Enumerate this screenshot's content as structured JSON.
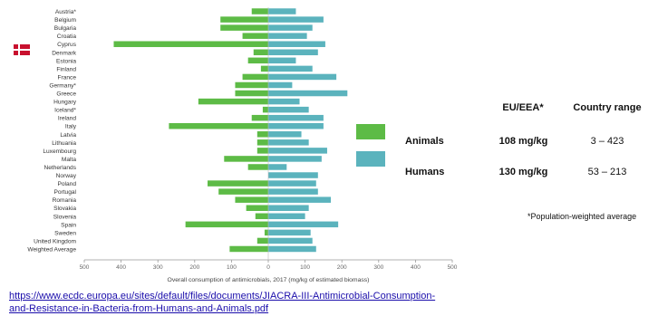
{
  "chart_data": {
    "type": "bar",
    "orientation": "horizontal-diverging",
    "categories": [
      "Austria*",
      "Belgium",
      "Bulgaria",
      "Croatia",
      "Cyprus",
      "Denmark",
      "Estonia",
      "Finland",
      "France",
      "Germany*",
      "Greece",
      "Hungary",
      "Iceland*",
      "Ireland",
      "Italy",
      "Latvia",
      "Lithuania",
      "Luxembourg",
      "Malta",
      "Netherlands",
      "Norway",
      "Poland",
      "Portugal",
      "Romania",
      "Slovakia",
      "Slovenia",
      "Spain",
      "Sweden",
      "United Kingdom",
      "Weighted Average"
    ],
    "series": [
      {
        "name": "Animals",
        "color": "#5dbb46",
        "direction": "left",
        "values": [
          45,
          130,
          130,
          70,
          420,
          40,
          55,
          20,
          70,
          90,
          90,
          190,
          15,
          45,
          270,
          30,
          30,
          30,
          120,
          55,
          0,
          165,
          135,
          90,
          60,
          35,
          225,
          10,
          30,
          105
        ]
      },
      {
        "name": "Humans",
        "color": "#5bb3bd",
        "direction": "right",
        "values": [
          75,
          150,
          120,
          105,
          155,
          135,
          75,
          120,
          185,
          65,
          215,
          85,
          110,
          150,
          150,
          90,
          110,
          160,
          145,
          50,
          135,
          130,
          135,
          170,
          110,
          100,
          190,
          115,
          120,
          130
        ]
      }
    ],
    "xlabel": "Overall consumption of antimicrobials, 2017 (mg/kg of estimated biomass)",
    "xticks": [
      "500",
      "400",
      "300",
      "200",
      "100",
      "0",
      "100",
      "200",
      "300",
      "400",
      "500"
    ],
    "xlim": [
      -500,
      500
    ],
    "grid": false,
    "legend_position": "right"
  },
  "legend": {
    "items": [
      {
        "label": "Animals",
        "color": "#5dbb46"
      },
      {
        "label": "Humans",
        "color": "#5bb3bd"
      }
    ]
  },
  "summary_table": {
    "headers": [
      "EU/EEA*",
      "Country range"
    ],
    "rows": [
      {
        "value": "108 mg/kg",
        "range": "3 – 423"
      },
      {
        "value": "130 mg/kg",
        "range": "53 – 213"
      }
    ],
    "note": "*Population-weighted average"
  },
  "source_link": {
    "line1": "https://www.ecdc.europa.eu/sites/default/files/documents/JIACRA-III-Antimicrobial-Consumption-",
    "line2": "and-Resistance-in-Bacteria-from-Humans-and-Animals.pdf"
  },
  "highlight": {
    "flag": "denmark-flag-icon",
    "colors": [
      "#c8102e",
      "#ffffff"
    ]
  }
}
